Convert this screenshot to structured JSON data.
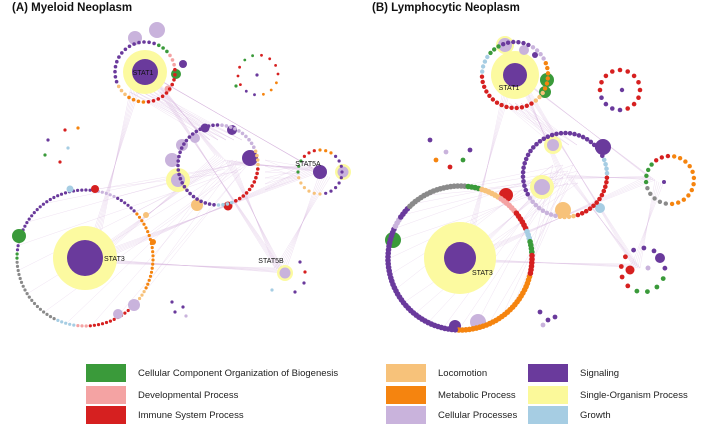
{
  "panels": [
    {
      "id": "A",
      "title": "(A) Myeloid Neoplasm",
      "hubs": [
        {
          "label": "STAT1",
          "category": "signaling"
        },
        {
          "label": "STAT5A",
          "category": "signaling"
        },
        {
          "label": "STAT3",
          "category": "signaling"
        },
        {
          "label": "STAT5B",
          "category": "cellular"
        }
      ]
    },
    {
      "id": "B",
      "title": "(B) Lymphocytic Neoplasm",
      "hubs": [
        {
          "label": "STAT1",
          "category": "signaling"
        },
        {
          "label": "STAT3",
          "category": "signaling"
        }
      ]
    }
  ],
  "legend": [
    {
      "key": "cellular_component",
      "label": "Cellular Component Organization of Biogenesis",
      "color": "#3a9a3a"
    },
    {
      "key": "developmental",
      "label": "Developmental Process",
      "color": "#f4a3a3"
    },
    {
      "key": "immune",
      "label": "Immune System Process",
      "color": "#d62020"
    },
    {
      "key": "locomotion",
      "label": "Locomotion",
      "color": "#f7c27a"
    },
    {
      "key": "metabolic",
      "label": "Metabolic Process",
      "color": "#f5840f"
    },
    {
      "key": "cellular",
      "label": "Cellular Processes",
      "color": "#c9b3dc"
    },
    {
      "key": "signaling",
      "label": "Signaling",
      "color": "#6a3a9c"
    },
    {
      "key": "single_organism",
      "label": "Single-Organism Process",
      "color": "#fbf99a"
    },
    {
      "key": "growth",
      "label": "Growth",
      "color": "#a6cde3"
    }
  ],
  "colors": {
    "edge": "#d7b6de",
    "halo": "#fcfaa0",
    "gray": "#8a8a8a"
  }
}
